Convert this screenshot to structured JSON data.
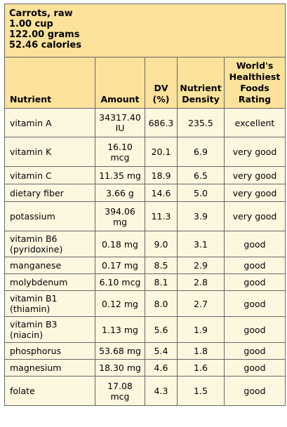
{
  "food": {
    "name": "Carrots, raw",
    "serving": "1.00 cup",
    "weight": "122.00 grams",
    "calories": "52.46 calories"
  },
  "columns": [
    "Nutrient",
    "Amount",
    "DV (%)",
    "Nutrient Density",
    "World's Healthiest Foods Rating"
  ],
  "column_lines": [
    [
      "Nutrient"
    ],
    [
      "Amount"
    ],
    [
      "DV",
      "(%)"
    ],
    [
      "Nutrient",
      "Density"
    ],
    [
      "World's",
      "Healthiest",
      "Foods",
      "Rating"
    ]
  ],
  "rows": [
    {
      "nutrient": [
        "vitamin A"
      ],
      "amount": [
        "34317.40",
        "IU"
      ],
      "dv": "686.3",
      "density": "235.5",
      "rating": "excellent"
    },
    {
      "nutrient": [
        "vitamin K"
      ],
      "amount": [
        "16.10",
        "mcg"
      ],
      "dv": "20.1",
      "density": "6.9",
      "rating": "very good"
    },
    {
      "nutrient": [
        "vitamin C"
      ],
      "amount": [
        "11.35 mg"
      ],
      "dv": "18.9",
      "density": "6.5",
      "rating": "very good"
    },
    {
      "nutrient": [
        "dietary fiber"
      ],
      "amount": [
        "3.66 g"
      ],
      "dv": "14.6",
      "density": "5.0",
      "rating": "very good"
    },
    {
      "nutrient": [
        "potassium"
      ],
      "amount": [
        "394.06",
        "mg"
      ],
      "dv": "11.3",
      "density": "3.9",
      "rating": "very good"
    },
    {
      "nutrient": [
        "vitamin B6",
        "(pyridoxine)"
      ],
      "amount": [
        "0.18 mg"
      ],
      "dv": "9.0",
      "density": "3.1",
      "rating": "good"
    },
    {
      "nutrient": [
        "manganese"
      ],
      "amount": [
        "0.17 mg"
      ],
      "dv": "8.5",
      "density": "2.9",
      "rating": "good"
    },
    {
      "nutrient": [
        "molybdenum"
      ],
      "amount": [
        "6.10 mcg"
      ],
      "dv": "8.1",
      "density": "2.8",
      "rating": "good"
    },
    {
      "nutrient": [
        "vitamin B1",
        "(thiamin)"
      ],
      "amount": [
        "0.12 mg"
      ],
      "dv": "8.0",
      "density": "2.7",
      "rating": "good"
    },
    {
      "nutrient": [
        "vitamin B3",
        "(niacin)"
      ],
      "amount": [
        "1.13 mg"
      ],
      "dv": "5.6",
      "density": "1.9",
      "rating": "good"
    },
    {
      "nutrient": [
        "phosphorus"
      ],
      "amount": [
        "53.68 mg"
      ],
      "dv": "5.4",
      "density": "1.8",
      "rating": "good"
    },
    {
      "nutrient": [
        "magnesium"
      ],
      "amount": [
        "18.30 mg"
      ],
      "dv": "4.6",
      "density": "1.6",
      "rating": "good"
    },
    {
      "nutrient": [
        "folate"
      ],
      "amount": [
        "17.08",
        "mcg"
      ],
      "dv": "4.3",
      "density": "1.5",
      "rating": "good"
    }
  ],
  "colors": {
    "header_bg": "#fce29a",
    "row_bg": "#fef7e0",
    "border": "#666666"
  }
}
